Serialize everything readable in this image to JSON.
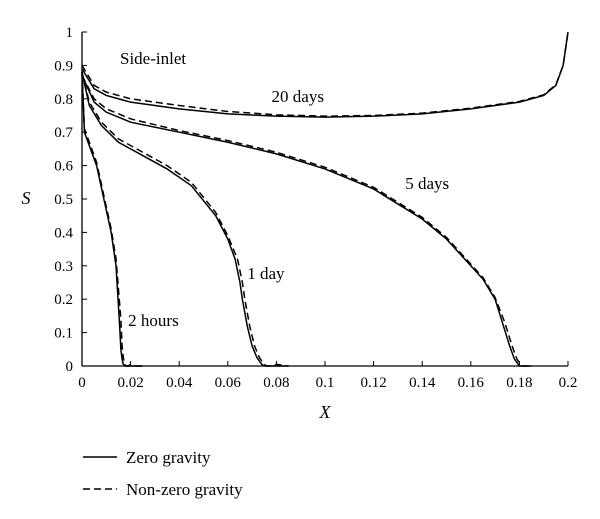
{
  "chart_data": {
    "type": "line",
    "title": "",
    "xlabel": "X",
    "ylabel": "S",
    "xlim": [
      0,
      0.2
    ],
    "ylim": [
      0,
      1
    ],
    "x_ticks": [
      0,
      0.02,
      0.04,
      0.06,
      0.08,
      0.1,
      0.12,
      0.14,
      0.16,
      0.18,
      0.2
    ],
    "y_ticks": [
      0,
      0.1,
      0.2,
      0.3,
      0.4,
      0.5,
      0.6,
      0.7,
      0.8,
      0.9,
      1
    ],
    "grid": false,
    "legend_position": "bottom-left",
    "annotation": "Side-inlet",
    "legend": [
      {
        "label": "Zero gravity",
        "style": "solid"
      },
      {
        "label": "Non-zero gravity",
        "style": "dashed"
      }
    ],
    "series": [
      {
        "time": "2 hours",
        "gravity": "Zero gravity",
        "style": "solid",
        "x": [
          0,
          0.001,
          0.003,
          0.006,
          0.009,
          0.012,
          0.014,
          0.0155,
          0.016,
          0.0165,
          0.017,
          0.018,
          0.02,
          0.025
        ],
        "y": [
          0.88,
          0.7,
          0.66,
          0.6,
          0.5,
          0.4,
          0.3,
          0.12,
          0.05,
          0.02,
          0.005,
          0,
          0,
          0
        ]
      },
      {
        "time": "2 hours",
        "gravity": "Non-zero gravity",
        "style": "dashed",
        "x": [
          0,
          0.001,
          0.003,
          0.006,
          0.009,
          0.012,
          0.014,
          0.016,
          0.0165,
          0.017,
          0.0175,
          0.018,
          0.019,
          0.02,
          0.022,
          0.025
        ],
        "y": [
          0.88,
          0.71,
          0.67,
          0.61,
          0.51,
          0.41,
          0.32,
          0.14,
          0.06,
          0.025,
          0.008,
          0,
          0,
          0.005,
          0,
          0
        ]
      },
      {
        "time": "1 day",
        "gravity": "Zero gravity",
        "style": "solid",
        "x": [
          0,
          0.003,
          0.008,
          0.015,
          0.025,
          0.035,
          0.045,
          0.055,
          0.06,
          0.063,
          0.065,
          0.066,
          0.068,
          0.07,
          0.072,
          0.074,
          0.075,
          0.077,
          0.08,
          0.085
        ],
        "y": [
          0.88,
          0.78,
          0.72,
          0.67,
          0.63,
          0.59,
          0.54,
          0.45,
          0.38,
          0.32,
          0.25,
          0.2,
          0.12,
          0.06,
          0.025,
          0.005,
          0,
          0,
          0,
          0
        ]
      },
      {
        "time": "1 day",
        "gravity": "Non-zero gravity",
        "style": "dashed",
        "x": [
          0,
          0.003,
          0.008,
          0.015,
          0.025,
          0.035,
          0.045,
          0.055,
          0.06,
          0.064,
          0.066,
          0.067,
          0.069,
          0.071,
          0.073,
          0.075,
          0.076,
          0.078,
          0.08,
          0.085
        ],
        "y": [
          0.88,
          0.79,
          0.73,
          0.68,
          0.64,
          0.6,
          0.55,
          0.46,
          0.39,
          0.32,
          0.25,
          0.2,
          0.12,
          0.06,
          0.025,
          0.005,
          0,
          0,
          0.005,
          0
        ]
      },
      {
        "time": "5 days",
        "gravity": "Zero gravity",
        "style": "solid",
        "x": [
          0,
          0.005,
          0.01,
          0.02,
          0.04,
          0.06,
          0.08,
          0.1,
          0.12,
          0.14,
          0.15,
          0.16,
          0.165,
          0.17,
          0.173,
          0.176,
          0.178,
          0.18,
          0.185
        ],
        "y": [
          0.87,
          0.79,
          0.76,
          0.73,
          0.7,
          0.67,
          0.635,
          0.59,
          0.53,
          0.44,
          0.38,
          0.3,
          0.26,
          0.2,
          0.13,
          0.06,
          0.02,
          0,
          0
        ]
      },
      {
        "time": "5 days",
        "gravity": "Non-zero gravity",
        "style": "dashed",
        "x": [
          0,
          0.005,
          0.01,
          0.02,
          0.04,
          0.06,
          0.08,
          0.1,
          0.12,
          0.14,
          0.15,
          0.16,
          0.165,
          0.17,
          0.174,
          0.177,
          0.179,
          0.181,
          0.185
        ],
        "y": [
          0.87,
          0.8,
          0.77,
          0.74,
          0.705,
          0.675,
          0.64,
          0.595,
          0.535,
          0.445,
          0.385,
          0.305,
          0.265,
          0.205,
          0.13,
          0.06,
          0.02,
          0,
          0
        ]
      },
      {
        "time": "20 days",
        "gravity": "Zero gravity",
        "style": "solid",
        "x": [
          0,
          0.005,
          0.01,
          0.02,
          0.04,
          0.06,
          0.08,
          0.1,
          0.12,
          0.14,
          0.16,
          0.18,
          0.19,
          0.195,
          0.198,
          0.2
        ],
        "y": [
          0.89,
          0.83,
          0.81,
          0.79,
          0.77,
          0.755,
          0.748,
          0.745,
          0.748,
          0.755,
          0.77,
          0.79,
          0.81,
          0.84,
          0.9,
          1.0
        ]
      },
      {
        "time": "20 days",
        "gravity": "Non-zero gravity",
        "style": "dashed",
        "x": [
          0,
          0.005,
          0.01,
          0.02,
          0.04,
          0.06,
          0.08,
          0.1,
          0.12,
          0.14,
          0.16,
          0.18,
          0.19,
          0.195,
          0.198,
          0.2
        ],
        "y": [
          0.9,
          0.84,
          0.82,
          0.8,
          0.78,
          0.762,
          0.752,
          0.748,
          0.75,
          0.757,
          0.772,
          0.792,
          0.812,
          0.842,
          0.9,
          1.0
        ]
      }
    ],
    "curve_labels": [
      {
        "text": "2 hours",
        "x": 0.019,
        "y": 0.12
      },
      {
        "text": "1 day",
        "x": 0.068,
        "y": 0.26
      },
      {
        "text": "5 days",
        "x": 0.133,
        "y": 0.53
      },
      {
        "text": "20 days",
        "x": 0.078,
        "y": 0.79
      }
    ]
  }
}
